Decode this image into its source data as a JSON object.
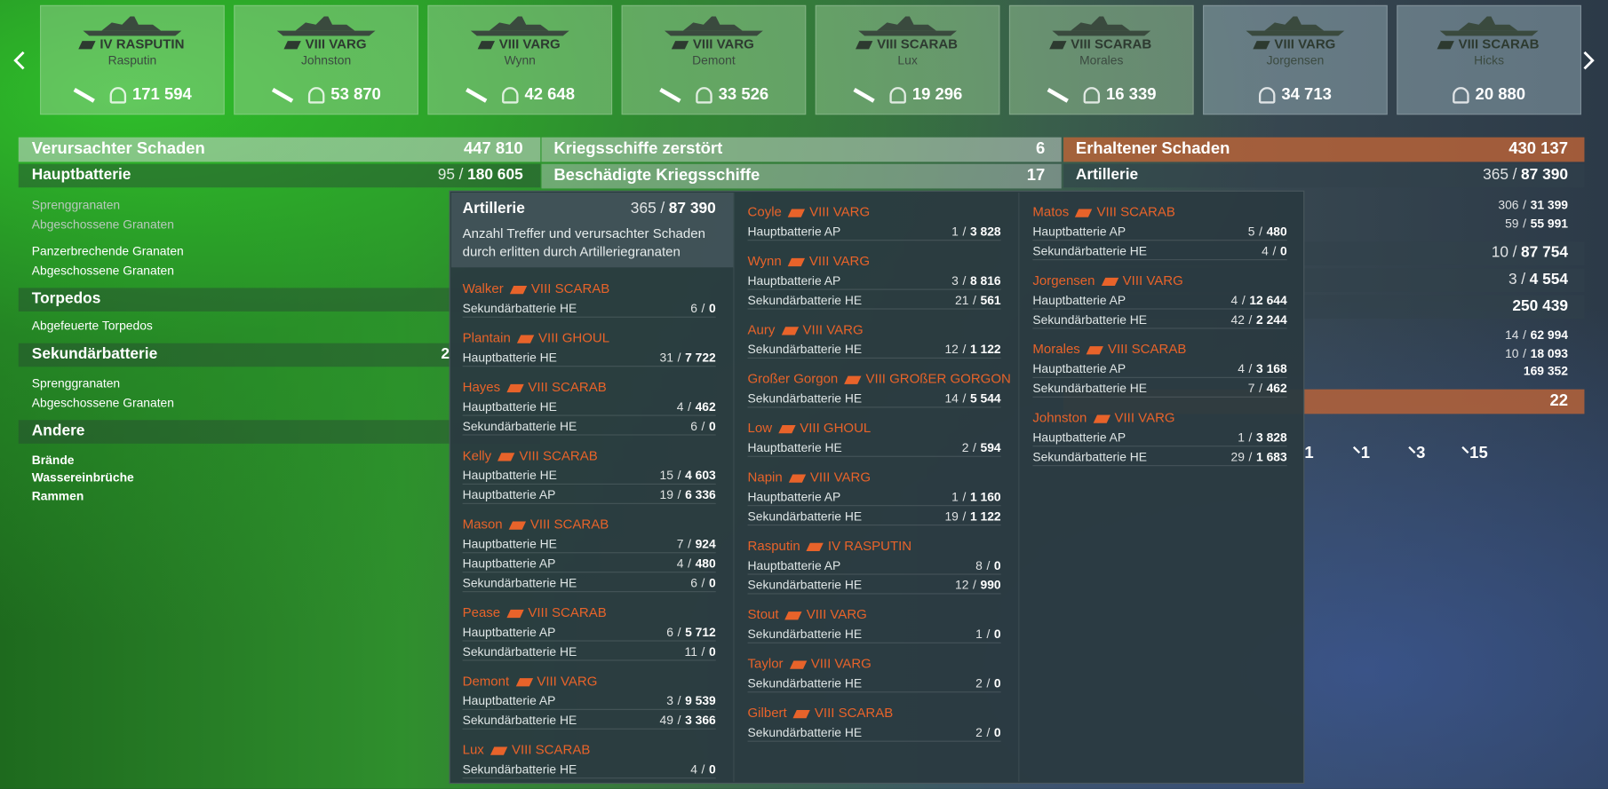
{
  "separator": "/",
  "ships": [
    {
      "ship": "IV RASPUTIN",
      "player": "Rasputin",
      "damage": "171 594",
      "destroyed": true
    },
    {
      "ship": "VIII VARG",
      "player": "Johnston",
      "damage": "53 870",
      "destroyed": true
    },
    {
      "ship": "VIII VARG",
      "player": "Wynn",
      "damage": "42 648",
      "destroyed": true
    },
    {
      "ship": "VIII VARG",
      "player": "Demont",
      "damage": "33 526",
      "destroyed": true
    },
    {
      "ship": "VIII SCARAB",
      "player": "Lux",
      "damage": "19 296",
      "destroyed": true
    },
    {
      "ship": "VIII SCARAB",
      "player": "Morales",
      "damage": "16 339",
      "destroyed": true
    },
    {
      "ship": "VIII VARG",
      "player": "Jorgensen",
      "damage": "34 713",
      "destroyed": false
    },
    {
      "ship": "VIII SCARAB",
      "player": "Hicks",
      "damage": "20 880",
      "destroyed": false
    }
  ],
  "left": {
    "title": "Verursachter Schaden",
    "total": "447 810",
    "sections": [
      {
        "title": "Hauptbatterie",
        "hits": "95",
        "damage": "180 605",
        "items": [
          "Sprenggranaten",
          "Abgeschossene Granaten",
          "Panzerbrechende Granaten",
          "Abgeschossene Granaten"
        ]
      },
      {
        "title": "Torpedos",
        "items": [
          "Abgefeuerte Torpedos"
        ]
      },
      {
        "title": "Sekundärbatterie",
        "value": "2",
        "items": [
          "Sprenggranaten",
          "Abgeschossene Granaten"
        ]
      },
      {
        "title": "Andere",
        "items": [
          "Brände",
          "Wassereinbrüche",
          "Rammen"
        ]
      }
    ]
  },
  "middle": {
    "rows": [
      {
        "label": "Kriegsschiffe zerstört",
        "value": "6"
      },
      {
        "label": "Beschädigte Kriegsschiffe",
        "value": "17"
      }
    ]
  },
  "right": {
    "title": "Erhaltener Schaden",
    "total": "430 137",
    "sub": {
      "label": "Artillerie",
      "hits": "365",
      "damage": "87 390"
    },
    "values": [
      {
        "hits": "306",
        "damage": "31 399"
      },
      {
        "hits": "59",
        "damage": "55 991"
      },
      {
        "hits": "10",
        "damage": "87 754"
      },
      {
        "hits": "3",
        "damage": "4 554"
      },
      {
        "damage": "250 439"
      },
      {
        "hits": "14",
        "damage": "62 994"
      },
      {
        "hits": "10",
        "damage": "18 093"
      },
      {
        "damage": "169 352"
      }
    ],
    "ribbon": "22",
    "counts": [
      "1",
      "1",
      "3",
      "15"
    ]
  },
  "popup": {
    "title": "Artillerie",
    "hits": "365",
    "damage": "87 390",
    "description": "Anzahl Treffer und verursachter Schaden durch erlitten durch Artilleriegranaten",
    "columns": [
      [
        {
          "name": "Walker",
          "ship": "VIII SCARAB",
          "rows": [
            {
              "label": "Sekundärbatterie HE",
              "hits": "6",
              "damage": "0"
            }
          ]
        },
        {
          "name": "Plantain",
          "ship": "VIII GHOUL",
          "rows": [
            {
              "label": "Hauptbatterie HE",
              "hits": "31",
              "damage": "7 722"
            }
          ]
        },
        {
          "name": "Hayes",
          "ship": "VIII SCARAB",
          "rows": [
            {
              "label": "Hauptbatterie HE",
              "hits": "4",
              "damage": "462"
            },
            {
              "label": "Sekundärbatterie HE",
              "hits": "6",
              "damage": "0"
            }
          ]
        },
        {
          "name": "Kelly",
          "ship": "VIII SCARAB",
          "rows": [
            {
              "label": "Hauptbatterie HE",
              "hits": "15",
              "damage": "4 603"
            },
            {
              "label": "Hauptbatterie AP",
              "hits": "19",
              "damage": "6 336"
            }
          ]
        },
        {
          "name": "Mason",
          "ship": "VIII SCARAB",
          "rows": [
            {
              "label": "Hauptbatterie HE",
              "hits": "7",
              "damage": "924"
            },
            {
              "label": "Hauptbatterie AP",
              "hits": "4",
              "damage": "480"
            },
            {
              "label": "Sekundärbatterie HE",
              "hits": "6",
              "damage": "0"
            }
          ]
        },
        {
          "name": "Pease",
          "ship": "VIII SCARAB",
          "rows": [
            {
              "label": "Hauptbatterie AP",
              "hits": "6",
              "damage": "5 712"
            },
            {
              "label": "Sekundärbatterie HE",
              "hits": "11",
              "damage": "0"
            }
          ]
        },
        {
          "name": "Demont",
          "ship": "VIII VARG",
          "rows": [
            {
              "label": "Hauptbatterie AP",
              "hits": "3",
              "damage": "9 539"
            },
            {
              "label": "Sekundärbatterie HE",
              "hits": "49",
              "damage": "3 366"
            }
          ]
        },
        {
          "name": "Lux",
          "ship": "VIII SCARAB",
          "rows": [
            {
              "label": "Sekundärbatterie HE",
              "hits": "4",
              "damage": "0"
            }
          ]
        }
      ],
      [
        {
          "name": "Coyle",
          "ship": "VIII VARG",
          "rows": [
            {
              "label": "Hauptbatterie AP",
              "hits": "1",
              "damage": "3 828"
            }
          ]
        },
        {
          "name": "Wynn",
          "ship": "VIII VARG",
          "rows": [
            {
              "label": "Hauptbatterie AP",
              "hits": "3",
              "damage": "8 816"
            },
            {
              "label": "Sekundärbatterie HE",
              "hits": "21",
              "damage": "561"
            }
          ]
        },
        {
          "name": "Aury",
          "ship": "VIII VARG",
          "rows": [
            {
              "label": "Sekundärbatterie HE",
              "hits": "12",
              "damage": "1 122"
            }
          ]
        },
        {
          "name": "Großer Gorgon",
          "ship": "VIII GROßER GORGON",
          "rows": [
            {
              "label": "Sekundärbatterie HE",
              "hits": "14",
              "damage": "5 544"
            }
          ]
        },
        {
          "name": "Low",
          "ship": "VIII GHOUL",
          "rows": [
            {
              "label": "Hauptbatterie HE",
              "hits": "2",
              "damage": "594"
            }
          ]
        },
        {
          "name": "Napin",
          "ship": "VIII VARG",
          "rows": [
            {
              "label": "Hauptbatterie AP",
              "hits": "1",
              "damage": "1 160"
            },
            {
              "label": "Sekundärbatterie HE",
              "hits": "19",
              "damage": "1 122"
            }
          ]
        },
        {
          "name": "Rasputin",
          "ship": "IV RASPUTIN",
          "rows": [
            {
              "label": "Hauptbatterie AP",
              "hits": "8",
              "damage": "0"
            },
            {
              "label": "Sekundärbatterie HE",
              "hits": "12",
              "damage": "990"
            }
          ]
        },
        {
          "name": "Stout",
          "ship": "VIII VARG",
          "rows": [
            {
              "label": "Sekundärbatterie HE",
              "hits": "1",
              "damage": "0"
            }
          ]
        },
        {
          "name": "Taylor",
          "ship": "VIII VARG",
          "rows": [
            {
              "label": "Sekundärbatterie HE",
              "hits": "2",
              "damage": "0"
            }
          ]
        },
        {
          "name": "Gilbert",
          "ship": "VIII SCARAB",
          "rows": [
            {
              "label": "Sekundärbatterie HE",
              "hits": "2",
              "damage": "0"
            }
          ]
        }
      ],
      [
        {
          "name": "Matos",
          "ship": "VIII SCARAB",
          "rows": [
            {
              "label": "Hauptbatterie AP",
              "hits": "5",
              "damage": "480"
            },
            {
              "label": "Sekundärbatterie HE",
              "hits": "4",
              "damage": "0"
            }
          ]
        },
        {
          "name": "Jorgensen",
          "ship": "VIII VARG",
          "rows": [
            {
              "label": "Hauptbatterie AP",
              "hits": "4",
              "damage": "12 644"
            },
            {
              "label": "Sekundärbatterie HE",
              "hits": "42",
              "damage": "2 244"
            }
          ]
        },
        {
          "name": "Morales",
          "ship": "VIII SCARAB",
          "rows": [
            {
              "label": "Hauptbatterie AP",
              "hits": "4",
              "damage": "3 168"
            },
            {
              "label": "Sekundärbatterie HE",
              "hits": "7",
              "damage": "462"
            }
          ]
        },
        {
          "name": "Johnston",
          "ship": "VIII VARG",
          "rows": [
            {
              "label": "Hauptbatterie AP",
              "hits": "1",
              "damage": "3 828"
            },
            {
              "label": "Sekundärbatterie HE",
              "hits": "29",
              "damage": "1 683"
            }
          ]
        }
      ]
    ]
  }
}
